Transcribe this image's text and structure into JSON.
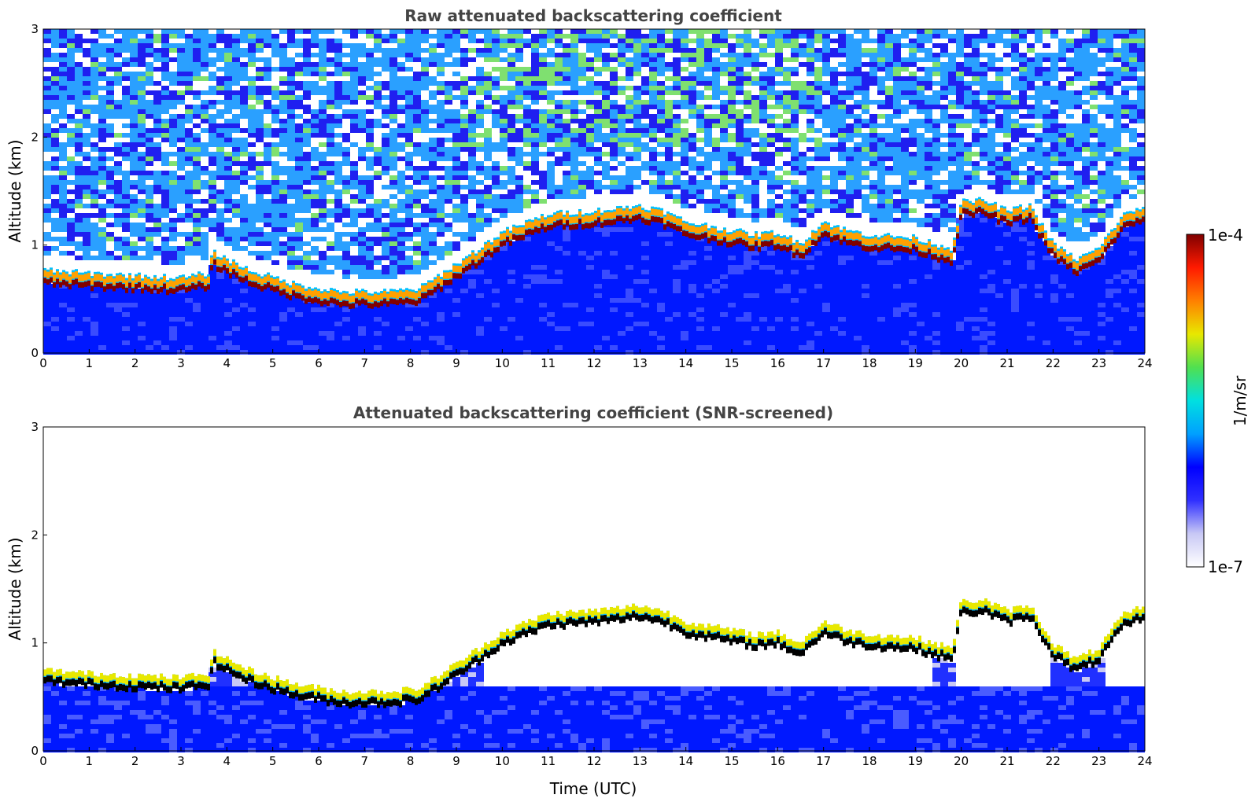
{
  "chart_data": [
    {
      "type": "heatmap",
      "title": "Raw attenuated backscattering coefficient",
      "xlabel": "",
      "ylabel": "Altitude (km)",
      "xlim": [
        0,
        24
      ],
      "ylim": [
        0,
        3
      ],
      "x_ticks": [
        "0",
        "1",
        "2",
        "3",
        "4",
        "5",
        "6",
        "7",
        "8",
        "9",
        "10",
        "11",
        "12",
        "13",
        "14",
        "15",
        "16",
        "17",
        "18",
        "19",
        "20",
        "21",
        "22",
        "23",
        "24"
      ],
      "y_ticks": [
        "0",
        "1",
        "2",
        "3"
      ],
      "screened": false,
      "layer": {
        "time_utc": [
          0,
          1,
          2,
          3,
          3.6,
          3.7,
          4.5,
          5.5,
          6.5,
          7.5,
          8.2,
          8.8,
          9.5,
          10,
          11,
          12,
          12.5,
          13,
          13.5,
          14,
          15,
          15.5,
          16,
          16.5,
          17,
          17.5,
          18,
          19,
          19.8,
          20,
          20.5,
          21,
          21.5,
          22,
          22.5,
          23,
          23.5,
          24
        ],
        "top_altitude_km": [
          0.75,
          0.72,
          0.7,
          0.68,
          0.72,
          0.92,
          0.75,
          0.62,
          0.55,
          0.55,
          0.58,
          0.75,
          0.95,
          1.1,
          1.27,
          1.3,
          1.32,
          1.35,
          1.3,
          1.2,
          1.12,
          1.08,
          1.1,
          1.0,
          1.2,
          1.12,
          1.08,
          1.05,
          0.95,
          1.38,
          1.4,
          1.3,
          1.35,
          1.0,
          0.85,
          0.95,
          1.25,
          1.35
        ]
      }
    },
    {
      "type": "heatmap",
      "title": "Attenuated backscattering coefficient (SNR-screened)",
      "xlabel": "Time (UTC)",
      "ylabel": "Altitude (km)",
      "xlim": [
        0,
        24
      ],
      "ylim": [
        0,
        3
      ],
      "x_ticks": [
        "0",
        "1",
        "2",
        "3",
        "4",
        "5",
        "6",
        "7",
        "8",
        "9",
        "10",
        "11",
        "12",
        "13",
        "14",
        "15",
        "16",
        "17",
        "18",
        "19",
        "20",
        "21",
        "22",
        "23",
        "24"
      ],
      "y_ticks": [
        "0",
        "1",
        "2",
        "3"
      ],
      "screened": true,
      "layer": {
        "time_utc": [
          0,
          1,
          2,
          3,
          3.6,
          3.7,
          4.5,
          5.5,
          6.5,
          7.5,
          8.2,
          8.8,
          9.5,
          10,
          11,
          12,
          12.5,
          13,
          13.5,
          14,
          15,
          15.5,
          16,
          16.5,
          17,
          17.5,
          18,
          19,
          19.8,
          20,
          20.5,
          21,
          21.5,
          22,
          22.5,
          23,
          23.5,
          24
        ],
        "top_altitude_km": [
          0.75,
          0.72,
          0.7,
          0.68,
          0.72,
          0.92,
          0.75,
          0.62,
          0.55,
          0.55,
          0.58,
          0.75,
          0.95,
          1.1,
          1.27,
          1.3,
          1.32,
          1.35,
          1.3,
          1.2,
          1.12,
          1.08,
          1.1,
          1.0,
          1.2,
          1.12,
          1.08,
          1.05,
          0.95,
          1.38,
          1.4,
          1.3,
          1.35,
          1.0,
          0.85,
          0.95,
          1.25,
          1.35
        ]
      }
    }
  ],
  "colorbar": {
    "label": "1/m/sr",
    "max_label": "1e-4",
    "min_label": "1e-7",
    "scale": "log",
    "range": [
      1e-07,
      0.0001
    ],
    "colors": [
      "#ffffff",
      "#c8c8f5",
      "#3030ff",
      "#0000ff",
      "#00a0ff",
      "#00e0e0",
      "#50e050",
      "#e8e800",
      "#ff8000",
      "#ff1a00",
      "#800000"
    ]
  },
  "colors": {
    "noise_high": "#2aa0ff",
    "noise_low": "#1f1ff0",
    "near_surface": "#0012ff",
    "layer_core_raw": "#800000",
    "layer_core_screened": "#000000",
    "text_title": "#444444"
  }
}
